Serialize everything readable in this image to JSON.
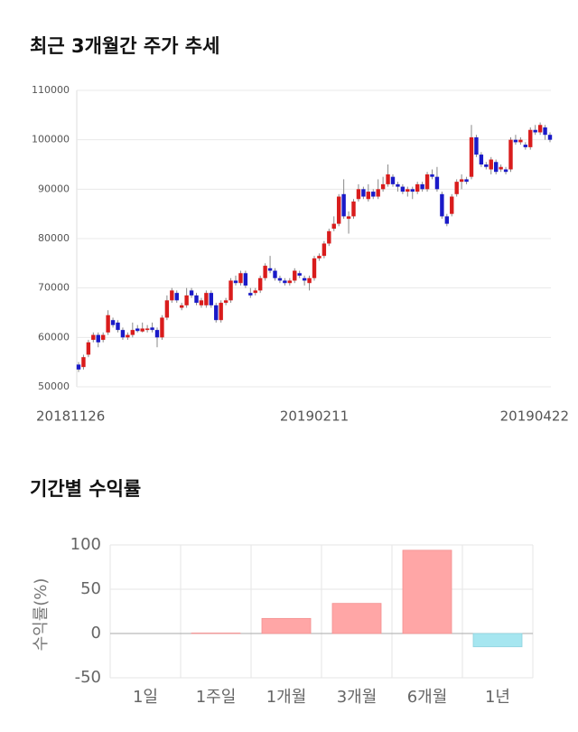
{
  "chart_data": [
    {
      "type": "candlestick",
      "title": "최근 3개월간 주가 추세",
      "x": [
        "20181126",
        null,
        null,
        null,
        null,
        null,
        null,
        null,
        null,
        null,
        null,
        null,
        null,
        null,
        null,
        null,
        null,
        null,
        null,
        null,
        null,
        null,
        null,
        null,
        null,
        null,
        null,
        null,
        null,
        null,
        null,
        null,
        null,
        null,
        null,
        null,
        null,
        null,
        null,
        null,
        null,
        null,
        null,
        null,
        null,
        null,
        null,
        null,
        "20190211",
        null,
        null,
        null,
        null,
        null,
        null,
        null,
        null,
        null,
        null,
        null,
        null,
        null,
        null,
        null,
        null,
        null,
        null,
        null,
        null,
        null,
        null,
        null,
        null,
        null,
        null,
        null,
        null,
        null,
        null,
        null,
        null,
        null,
        null,
        null,
        null,
        null,
        null,
        null,
        null,
        null,
        null,
        null,
        null,
        null,
        null,
        null,
        "20190422"
      ],
      "open": [
        54500,
        54000,
        56500,
        59500,
        60500,
        59500,
        61000,
        63500,
        63000,
        61500,
        60000,
        60500,
        61800,
        61200,
        61500,
        62000,
        61500,
        60000,
        64000,
        67500,
        69000,
        66000,
        66500,
        69500,
        68500,
        66500,
        66500,
        69000,
        66500,
        63500,
        67000,
        67500,
        71500,
        71000,
        73000,
        69000,
        69000,
        69500,
        72000,
        74000,
        73500,
        72000,
        71500,
        71000,
        71500,
        73000,
        72000,
        71000,
        72000,
        76000,
        76500,
        79000,
        82000,
        83000,
        89000,
        84000,
        84500,
        88000,
        90000,
        88000,
        89500,
        88500,
        90000,
        91000,
        92500,
        91000,
        90500,
        89500,
        90000,
        89500,
        91000,
        90000,
        93000,
        92500,
        89000,
        84500,
        85000,
        89000,
        91500,
        92000,
        92500,
        100500,
        97000,
        95000,
        94000,
        95500,
        94000,
        94000,
        94000,
        100000,
        99500,
        99000,
        98500,
        102000,
        101500,
        102500,
        101000
      ],
      "high": [
        55000,
        56500,
        59500,
        61000,
        61000,
        61000,
        65500,
        64000,
        63500,
        62000,
        61000,
        63000,
        62500,
        63000,
        62500,
        63000,
        62000,
        64500,
        68500,
        70000,
        69500,
        67000,
        70000,
        70000,
        69000,
        68000,
        69500,
        69500,
        67000,
        67500,
        68000,
        72000,
        72500,
        73500,
        73500,
        70000,
        70000,
        72500,
        75000,
        76500,
        74000,
        72500,
        72000,
        72000,
        74000,
        73500,
        72500,
        72500,
        76500,
        77000,
        79500,
        82000,
        84500,
        89000,
        92000,
        85500,
        88000,
        91000,
        90500,
        91000,
        90000,
        92000,
        92500,
        95000,
        93000,
        91500,
        91000,
        90500,
        90500,
        91500,
        91500,
        93500,
        94000,
        94500,
        89500,
        85000,
        89000,
        92000,
        93000,
        92500,
        103000,
        101000,
        97500,
        95500,
        96500,
        96000,
        95000,
        94500,
        100500,
        101000,
        100500,
        99500,
        102500,
        103000,
        103500,
        103000,
        101500
      ],
      "low": [
        53000,
        53500,
        56000,
        59000,
        58000,
        59000,
        60500,
        62000,
        61000,
        59500,
        59500,
        60000,
        61000,
        61000,
        61000,
        61000,
        58000,
        59500,
        63500,
        67000,
        67000,
        65500,
        66000,
        68000,
        66500,
        66000,
        66000,
        66000,
        63000,
        63000,
        66500,
        67000,
        70500,
        70500,
        70000,
        68000,
        68500,
        69000,
        71500,
        73000,
        71500,
        71000,
        70500,
        70500,
        71000,
        72000,
        70500,
        69500,
        71500,
        75500,
        76000,
        78500,
        81500,
        82500,
        84000,
        81000,
        84000,
        87500,
        88000,
        87500,
        88000,
        88000,
        89500,
        90500,
        90500,
        89500,
        89000,
        88500,
        88000,
        89000,
        89500,
        89500,
        92000,
        89500,
        84000,
        82500,
        84500,
        88500,
        90000,
        91000,
        92000,
        96500,
        94500,
        94000,
        93000,
        93000,
        93500,
        93000,
        93500,
        99000,
        99000,
        98000,
        98000,
        101000,
        101000,
        100000,
        99500
      ],
      "close": [
        53500,
        56000,
        59000,
        60500,
        59000,
        60500,
        64500,
        62500,
        61500,
        60000,
        60500,
        61500,
        61300,
        61800,
        61800,
        61500,
        60000,
        64000,
        67500,
        69500,
        67500,
        66500,
        68500,
        68500,
        67000,
        67500,
        69000,
        66500,
        63500,
        67000,
        67500,
        71500,
        71000,
        73000,
        70500,
        68500,
        69500,
        72000,
        74500,
        73500,
        72000,
        71500,
        71000,
        71500,
        73500,
        72500,
        71500,
        72000,
        76000,
        76500,
        79000,
        81500,
        83000,
        88500,
        84500,
        84500,
        87500,
        90000,
        88500,
        89500,
        88500,
        90000,
        91000,
        93000,
        91000,
        90500,
        89500,
        90000,
        89500,
        91000,
        90000,
        93000,
        92500,
        90000,
        84500,
        83000,
        88500,
        91500,
        92000,
        91500,
        100500,
        97000,
        95000,
        94500,
        96000,
        93500,
        94500,
        93500,
        100000,
        99500,
        100000,
        98500,
        102000,
        101500,
        103000,
        101000,
        100000
      ],
      "up_color": "#d91c1c",
      "down_color": "#1a1ac8",
      "ylim": [
        50000,
        110000
      ],
      "yticks": [
        50000,
        60000,
        70000,
        80000,
        90000,
        100000,
        110000
      ],
      "grid": true
    },
    {
      "type": "bar",
      "title": "기간별 수익률",
      "y_label": "수익률(%)",
      "categories": [
        "1일",
        "1주일",
        "1개월",
        "3개월",
        "6개월",
        "1년"
      ],
      "values": [
        0,
        0.5,
        17,
        34,
        94,
        -15
      ],
      "colors": [
        "#ffa6a6",
        "#ffa6a6",
        "#ffa6a6",
        "#ffa6a6",
        "#ffa6a6",
        "#a6e6f0"
      ],
      "ylim": [
        -50,
        100
      ],
      "yticks": [
        -50,
        0,
        50,
        100
      ],
      "grid": true
    }
  ]
}
